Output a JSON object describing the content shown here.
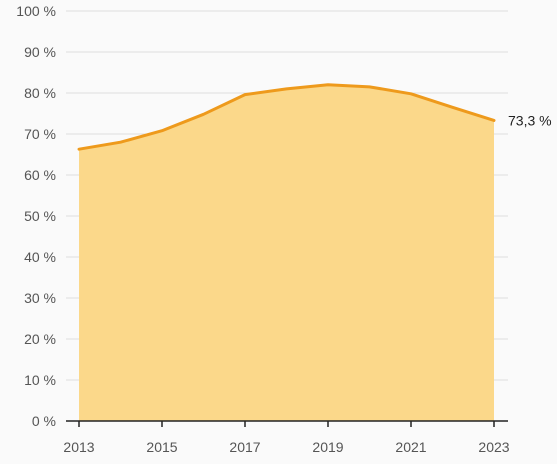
{
  "chart_data": {
    "type": "area",
    "x": [
      2013,
      2014,
      2015,
      2016,
      2017,
      2018,
      2019,
      2020,
      2021,
      2022,
      2023
    ],
    "series": [
      {
        "values": [
          66.3,
          68.0,
          70.8,
          74.8,
          79.6,
          81.0,
          82.0,
          81.5,
          79.8,
          76.5,
          73.3
        ]
      }
    ],
    "ylim": [
      0,
      100
    ],
    "y_ticks": [
      0,
      10,
      20,
      30,
      40,
      50,
      60,
      70,
      80,
      90,
      100
    ],
    "y_tick_labels": [
      "0 %",
      "10 %",
      "20 %",
      "30 %",
      "40 %",
      "50 %",
      "60 %",
      "70 %",
      "80 %",
      "90 %",
      "100 %"
    ],
    "x_ticks": [
      2013,
      2015,
      2017,
      2019,
      2021,
      2023
    ],
    "x_tick_labels": [
      "2013",
      "2015",
      "2017",
      "2019",
      "2021",
      "2023"
    ],
    "end_label": "73,3 %",
    "grid": true,
    "colors": {
      "line": "#ee9a1c",
      "fill": "#fbd88a",
      "grid": "#dddddd",
      "axis": "#222222"
    }
  }
}
